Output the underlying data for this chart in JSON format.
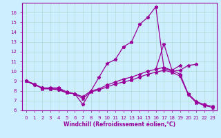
{
  "line1_x": [
    0,
    1,
    2,
    3,
    4,
    5,
    6,
    7,
    8,
    9,
    10,
    11,
    12,
    13,
    14,
    15,
    16,
    17,
    18,
    19,
    20,
    21,
    22,
    23
  ],
  "line1_y": [
    9.0,
    8.7,
    8.3,
    8.3,
    8.3,
    7.9,
    7.7,
    6.6,
    8.0,
    9.4,
    10.8,
    11.2,
    12.5,
    13.0,
    14.8,
    15.5,
    16.6,
    10.3,
    10.0,
    10.1,
    10.6,
    10.7,
    null,
    null
  ],
  "line2_x": [
    0,
    1,
    2,
    3,
    4,
    5,
    6,
    7,
    8,
    9,
    10,
    11,
    12,
    13,
    14,
    15,
    16,
    17,
    18,
    19,
    20,
    21,
    22,
    23
  ],
  "line2_y": [
    9.0,
    8.7,
    8.2,
    8.2,
    8.1,
    7.8,
    7.7,
    7.4,
    8.0,
    8.2,
    8.6,
    8.9,
    9.2,
    9.4,
    9.7,
    10.0,
    10.2,
    10.4,
    10.1,
    9.7,
    7.7,
    6.9,
    6.6,
    6.4
  ],
  "line3_x": [
    0,
    1,
    2,
    3,
    4,
    5,
    6,
    7,
    8,
    9,
    10,
    11,
    12,
    13,
    14,
    15,
    16,
    17,
    18,
    19,
    20,
    21,
    22,
    23
  ],
  "line3_y": [
    9.0,
    8.6,
    8.3,
    8.2,
    8.2,
    7.8,
    7.7,
    7.2,
    7.9,
    8.1,
    8.4,
    8.7,
    8.9,
    9.1,
    9.4,
    9.7,
    9.9,
    10.1,
    9.9,
    9.5,
    7.6,
    6.8,
    6.5,
    6.3
  ],
  "line4_x": [
    16,
    17,
    18,
    19,
    20
  ],
  "line4_y": [
    10.2,
    12.8,
    10.1,
    10.6,
    null
  ],
  "line_color": "#990099",
  "bg_color": "#cceeff",
  "grid_color": "#b0ddd0",
  "xlabel": "Windchill (Refroidissement éolien,°C)",
  "xlim": [
    -0.5,
    23.5
  ],
  "ylim": [
    6,
    17
  ],
  "yticks": [
    6,
    7,
    8,
    9,
    10,
    11,
    12,
    13,
    14,
    15,
    16
  ],
  "xticks": [
    0,
    1,
    2,
    3,
    4,
    5,
    6,
    7,
    8,
    9,
    10,
    11,
    12,
    13,
    14,
    15,
    16,
    17,
    18,
    19,
    20,
    21,
    22,
    23
  ]
}
